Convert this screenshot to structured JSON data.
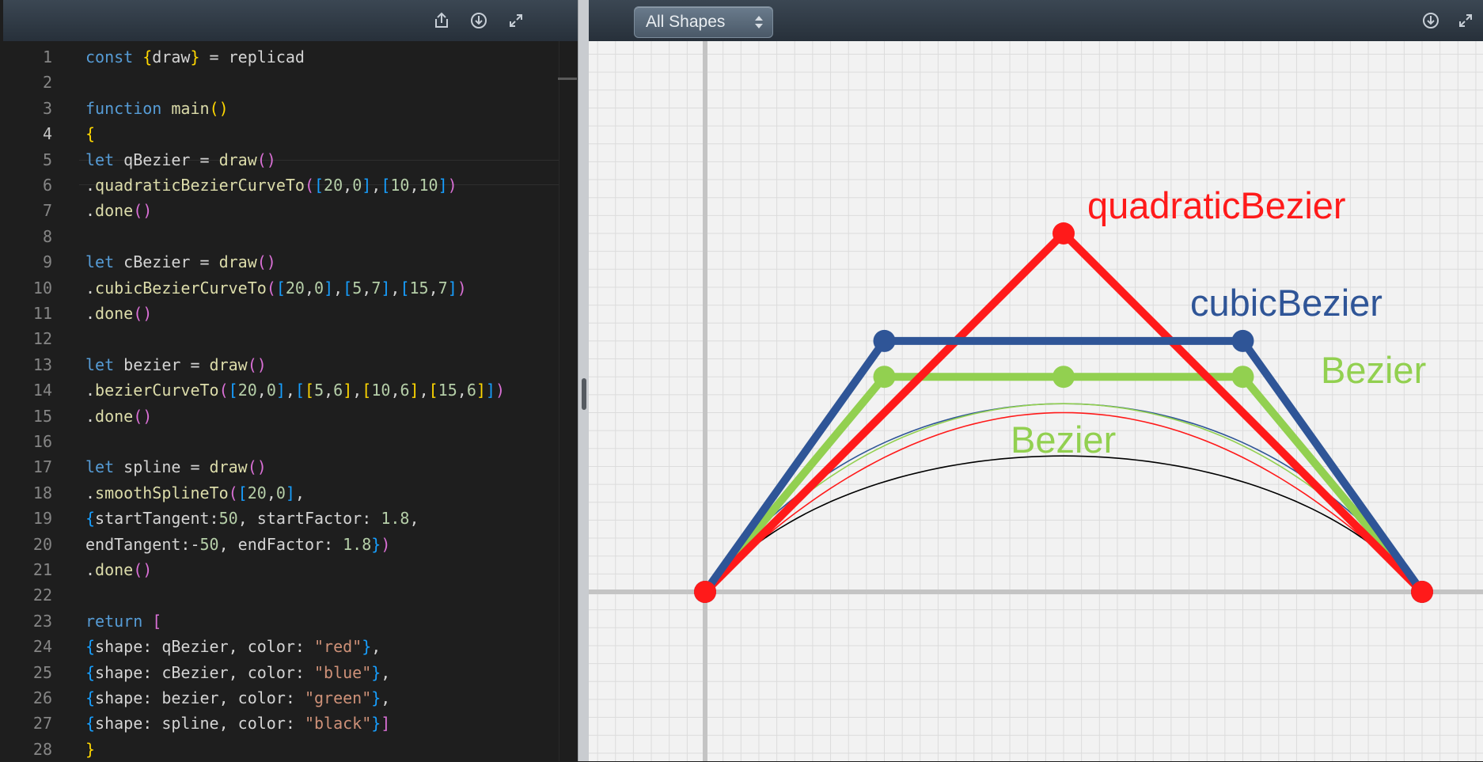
{
  "editor": {
    "toolbar": {
      "share_icon": "share-icon",
      "download_icon": "download-icon",
      "expand_icon": "expand-icon"
    },
    "active_line": 4,
    "lines": [
      {
        "n": "1",
        "parts": [
          [
            "c-kw",
            "const "
          ],
          [
            "c-b1",
            "{"
          ],
          [
            "c-var",
            "draw"
          ],
          [
            "c-b1",
            "}"
          ],
          [
            "c-var",
            " = replicad"
          ]
        ]
      },
      {
        "n": "2",
        "parts": []
      },
      {
        "n": "3",
        "parts": [
          [
            "c-kw",
            "function "
          ],
          [
            "c-fn",
            "main"
          ],
          [
            "c-b1",
            "()"
          ]
        ]
      },
      {
        "n": "4",
        "parts": [
          [
            "c-b1",
            "{"
          ]
        ]
      },
      {
        "n": "5",
        "parts": [
          [
            "c-kw",
            "let "
          ],
          [
            "c-var",
            "qBezier = "
          ],
          [
            "c-fn",
            "draw"
          ],
          [
            "c-b2",
            "()"
          ]
        ]
      },
      {
        "n": "6",
        "parts": [
          [
            "c-var",
            "."
          ],
          [
            "c-fn",
            "quadraticBezierCurveTo"
          ],
          [
            "c-b2",
            "("
          ],
          [
            "c-b3",
            "["
          ],
          [
            "c-num",
            "20"
          ],
          [
            "c-var",
            ","
          ],
          [
            "c-num",
            "0"
          ],
          [
            "c-b3",
            "]"
          ],
          [
            "c-var",
            ","
          ],
          [
            "c-b3",
            "["
          ],
          [
            "c-num",
            "10"
          ],
          [
            "c-var",
            ","
          ],
          [
            "c-num",
            "10"
          ],
          [
            "c-b3",
            "]"
          ],
          [
            "c-b2",
            ")"
          ]
        ]
      },
      {
        "n": "7",
        "parts": [
          [
            "c-var",
            "."
          ],
          [
            "c-fn",
            "done"
          ],
          [
            "c-b2",
            "()"
          ]
        ]
      },
      {
        "n": "8",
        "parts": []
      },
      {
        "n": "9",
        "parts": [
          [
            "c-kw",
            "let "
          ],
          [
            "c-var",
            "cBezier = "
          ],
          [
            "c-fn",
            "draw"
          ],
          [
            "c-b2",
            "()"
          ]
        ]
      },
      {
        "n": "10",
        "parts": [
          [
            "c-var",
            "."
          ],
          [
            "c-fn",
            "cubicBezierCurveTo"
          ],
          [
            "c-b2",
            "("
          ],
          [
            "c-b3",
            "["
          ],
          [
            "c-num",
            "20"
          ],
          [
            "c-var",
            ","
          ],
          [
            "c-num",
            "0"
          ],
          [
            "c-b3",
            "]"
          ],
          [
            "c-var",
            ","
          ],
          [
            "c-b3",
            "["
          ],
          [
            "c-num",
            "5"
          ],
          [
            "c-var",
            ","
          ],
          [
            "c-num",
            "7"
          ],
          [
            "c-b3",
            "]"
          ],
          [
            "c-var",
            ","
          ],
          [
            "c-b3",
            "["
          ],
          [
            "c-num",
            "15"
          ],
          [
            "c-var",
            ","
          ],
          [
            "c-num",
            "7"
          ],
          [
            "c-b3",
            "]"
          ],
          [
            "c-b2",
            ")"
          ]
        ]
      },
      {
        "n": "11",
        "parts": [
          [
            "c-var",
            "."
          ],
          [
            "c-fn",
            "done"
          ],
          [
            "c-b2",
            "()"
          ]
        ]
      },
      {
        "n": "12",
        "parts": []
      },
      {
        "n": "13",
        "parts": [
          [
            "c-kw",
            "let "
          ],
          [
            "c-var",
            "bezier = "
          ],
          [
            "c-fn",
            "draw"
          ],
          [
            "c-b2",
            "()"
          ]
        ]
      },
      {
        "n": "14",
        "parts": [
          [
            "c-var",
            "."
          ],
          [
            "c-fn",
            "bezierCurveTo"
          ],
          [
            "c-b2",
            "("
          ],
          [
            "c-b3",
            "["
          ],
          [
            "c-num",
            "20"
          ],
          [
            "c-var",
            ","
          ],
          [
            "c-num",
            "0"
          ],
          [
            "c-b3",
            "]"
          ],
          [
            "c-var",
            ","
          ],
          [
            "c-b3",
            "["
          ],
          [
            "c-b1",
            "["
          ],
          [
            "c-num",
            "5"
          ],
          [
            "c-var",
            ","
          ],
          [
            "c-num",
            "6"
          ],
          [
            "c-b1",
            "]"
          ],
          [
            "c-var",
            ","
          ],
          [
            "c-b1",
            "["
          ],
          [
            "c-num",
            "10"
          ],
          [
            "c-var",
            ","
          ],
          [
            "c-num",
            "6"
          ],
          [
            "c-b1",
            "]"
          ],
          [
            "c-var",
            ","
          ],
          [
            "c-b1",
            "["
          ],
          [
            "c-num",
            "15"
          ],
          [
            "c-var",
            ","
          ],
          [
            "c-num",
            "6"
          ],
          [
            "c-b1",
            "]"
          ],
          [
            "c-b3",
            "]"
          ],
          [
            "c-b2",
            ")"
          ]
        ]
      },
      {
        "n": "15",
        "parts": [
          [
            "c-var",
            "."
          ],
          [
            "c-fn",
            "done"
          ],
          [
            "c-b2",
            "()"
          ]
        ]
      },
      {
        "n": "16",
        "parts": []
      },
      {
        "n": "17",
        "parts": [
          [
            "c-kw",
            "let "
          ],
          [
            "c-var",
            "spline = "
          ],
          [
            "c-fn",
            "draw"
          ],
          [
            "c-b2",
            "()"
          ]
        ]
      },
      {
        "n": "18",
        "parts": [
          [
            "c-var",
            "."
          ],
          [
            "c-fn",
            "smoothSplineTo"
          ],
          [
            "c-b2",
            "("
          ],
          [
            "c-b3",
            "["
          ],
          [
            "c-num",
            "20"
          ],
          [
            "c-var",
            ","
          ],
          [
            "c-num",
            "0"
          ],
          [
            "c-b3",
            "]"
          ],
          [
            "c-var",
            ","
          ]
        ]
      },
      {
        "n": "19",
        "parts": [
          [
            "c-b3",
            "{"
          ],
          [
            "c-var",
            "startTangent:"
          ],
          [
            "c-num",
            "50"
          ],
          [
            "c-var",
            ", startFactor: "
          ],
          [
            "c-num",
            "1.8"
          ],
          [
            "c-var",
            ","
          ]
        ]
      },
      {
        "n": "20",
        "parts": [
          [
            "c-var",
            "endTangent:-"
          ],
          [
            "c-num",
            "50"
          ],
          [
            "c-var",
            ", endFactor: "
          ],
          [
            "c-num",
            "1.8"
          ],
          [
            "c-b3",
            "}"
          ],
          [
            "c-b2",
            ")"
          ]
        ]
      },
      {
        "n": "21",
        "parts": [
          [
            "c-var",
            "."
          ],
          [
            "c-fn",
            "done"
          ],
          [
            "c-b2",
            "()"
          ]
        ]
      },
      {
        "n": "22",
        "parts": []
      },
      {
        "n": "23",
        "parts": [
          [
            "c-kw",
            "return "
          ],
          [
            "c-b2",
            "["
          ]
        ]
      },
      {
        "n": "24",
        "parts": [
          [
            "c-b3",
            "{"
          ],
          [
            "c-var",
            "shape: qBezier, color: "
          ],
          [
            "c-str",
            "\"red\""
          ],
          [
            "c-b3",
            "}"
          ],
          [
            "c-var",
            ","
          ]
        ]
      },
      {
        "n": "25",
        "parts": [
          [
            "c-b3",
            "{"
          ],
          [
            "c-var",
            "shape: cBezier, color: "
          ],
          [
            "c-str",
            "\"blue\""
          ],
          [
            "c-b3",
            "}"
          ],
          [
            "c-var",
            ","
          ]
        ]
      },
      {
        "n": "26",
        "parts": [
          [
            "c-b3",
            "{"
          ],
          [
            "c-var",
            "shape: bezier, color: "
          ],
          [
            "c-str",
            "\"green\""
          ],
          [
            "c-b3",
            "}"
          ],
          [
            "c-var",
            ","
          ]
        ]
      },
      {
        "n": "27",
        "parts": [
          [
            "c-b3",
            "{"
          ],
          [
            "c-var",
            "shape: spline, color: "
          ],
          [
            "c-str",
            "\"black\""
          ],
          [
            "c-b3",
            "}"
          ],
          [
            "c-b2",
            "]"
          ]
        ]
      },
      {
        "n": "28",
        "parts": [
          [
            "c-b1",
            "}"
          ]
        ]
      }
    ]
  },
  "viewer": {
    "shape_select": {
      "value": "All Shapes"
    },
    "download_icon": "download-icon",
    "expand_icon": "expand-icon",
    "annotations": {
      "quadratic": "quadraticBezier",
      "cubic": "cubicBezier",
      "bezier_right": "Bezier",
      "bezier_center": "Bezier"
    },
    "scene": {
      "shapes": [
        {
          "name": "qBezier",
          "color": "#ff1a1a",
          "control_polygon": [
            [
              0,
              0
            ],
            [
              10,
              10
            ],
            [
              20,
              0
            ]
          ]
        },
        {
          "name": "cBezier",
          "color": "#2f5597",
          "control_polygon": [
            [
              0,
              0
            ],
            [
              5,
              7
            ],
            [
              15,
              7
            ],
            [
              20,
              0
            ]
          ]
        },
        {
          "name": "bezier",
          "color": "#92d050",
          "control_polygon": [
            [
              0,
              0
            ],
            [
              5,
              6
            ],
            [
              10,
              6
            ],
            [
              15,
              6
            ],
            [
              20,
              0
            ]
          ]
        },
        {
          "name": "spline",
          "color": "#000000",
          "end_points": [
            [
              0,
              0
            ],
            [
              20,
              0
            ]
          ]
        }
      ],
      "label_colors": {
        "quadratic": "#ff1a1a",
        "cubic": "#2f5597",
        "bezier": "#92d050"
      }
    }
  }
}
